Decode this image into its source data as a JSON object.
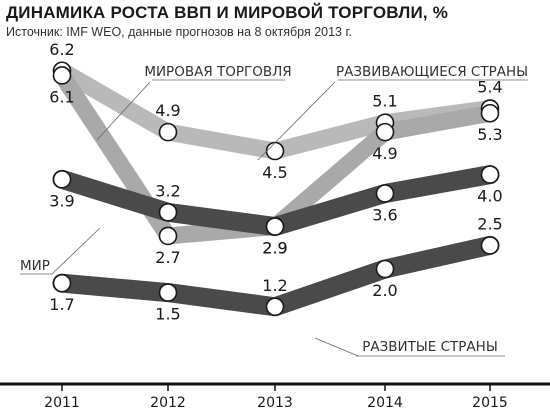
{
  "title": "ДИНАМИКА РОСТА ВВП И МИРОВОЙ ТОРГОВЛИ, %",
  "subtitle": "Источник: IMF WEO, данные прогнозов на 8 октября 2013 г.",
  "chart_data": {
    "type": "line",
    "x": [
      "2011",
      "2012",
      "2013",
      "2014",
      "2015"
    ],
    "series": [
      {
        "name": "МИРОВАЯ ТОРГОВЛЯ",
        "values": [
          6.1,
          2.7,
          2.9,
          4.9,
          5.3
        ],
        "color": "#a9a9a9"
      },
      {
        "name": "РАЗВИВАЮЩИЕСЯ СТРАНЫ",
        "values": [
          6.2,
          4.9,
          4.5,
          5.1,
          5.4
        ],
        "color": "#b9b9b9"
      },
      {
        "name": "МИР",
        "values": [
          3.9,
          3.2,
          2.9,
          3.6,
          4.0
        ],
        "color": "#4a4a4a"
      },
      {
        "name": "РАЗВИТЫЕ СТРАНЫ",
        "values": [
          1.7,
          1.5,
          1.2,
          2.0,
          2.5
        ],
        "color": "#4a4a4a"
      }
    ],
    "grid": false
  }
}
